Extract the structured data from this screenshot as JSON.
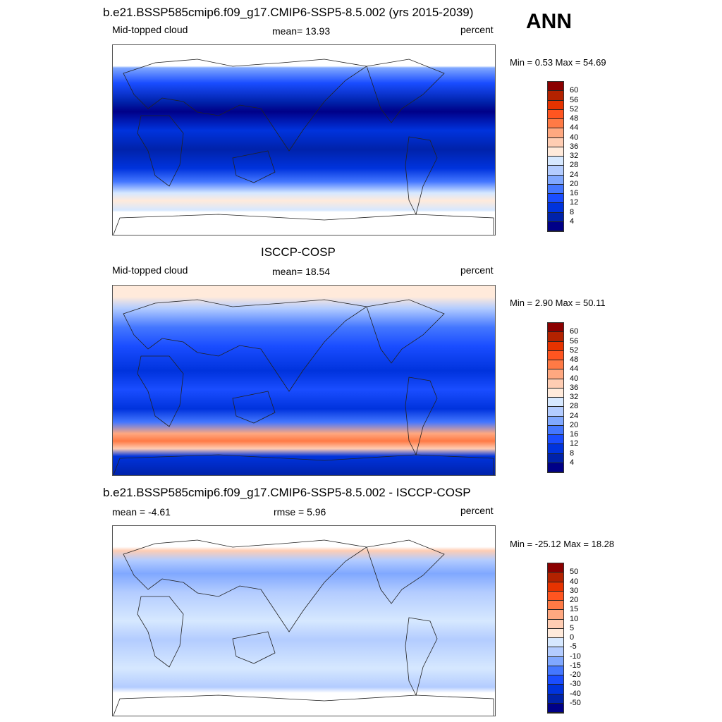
{
  "season": "ANN",
  "colors": [
    "#000088",
    "#0022aa",
    "#0033dd",
    "#1a4dff",
    "#4477ff",
    "#80a8ff",
    "#b3ccff",
    "#d6e8ff",
    "#ffeadb",
    "#ffcdb3",
    "#ffa880",
    "#ff7a45",
    "#ff5520",
    "#e63300",
    "#b32200",
    "#8b0000"
  ],
  "panels": [
    {
      "title": "b.e21.BSSP585cmip6.f09_g17.CMIP6-SSP5-8.5.002 (yrs 2015-2039)",
      "left": "Mid-topped cloud",
      "center": "mean=  13.93",
      "right": "percent",
      "minmax": "Min =   0.53 Max =  54.69",
      "levels": [
        "4",
        "8",
        "12",
        "16",
        "20",
        "24",
        "28",
        "32",
        "36",
        "40",
        "44",
        "48",
        "52",
        "56",
        "60"
      ]
    },
    {
      "title": "ISCCP-COSP",
      "left": "Mid-topped cloud",
      "center": "mean=  18.54",
      "right": "percent",
      "minmax": "Min =   2.90 Max =  50.11",
      "levels": [
        "4",
        "8",
        "12",
        "16",
        "20",
        "24",
        "28",
        "32",
        "36",
        "40",
        "44",
        "48",
        "52",
        "56",
        "60"
      ]
    },
    {
      "title": "b.e21.BSSP585cmip6.f09_g17.CMIP6-SSP5-8.5.002 - ISCCP-COSP",
      "left": "mean =  -4.61",
      "center": "rmse =   5.96",
      "right": "percent",
      "minmax": "Min = -25.12 Max =  18.28",
      "levels": [
        "-50",
        "-40",
        "-30",
        "-20",
        "-15",
        "-10",
        "-5",
        "0",
        "5",
        "10",
        "15",
        "20",
        "30",
        "40",
        "50"
      ]
    }
  ]
}
